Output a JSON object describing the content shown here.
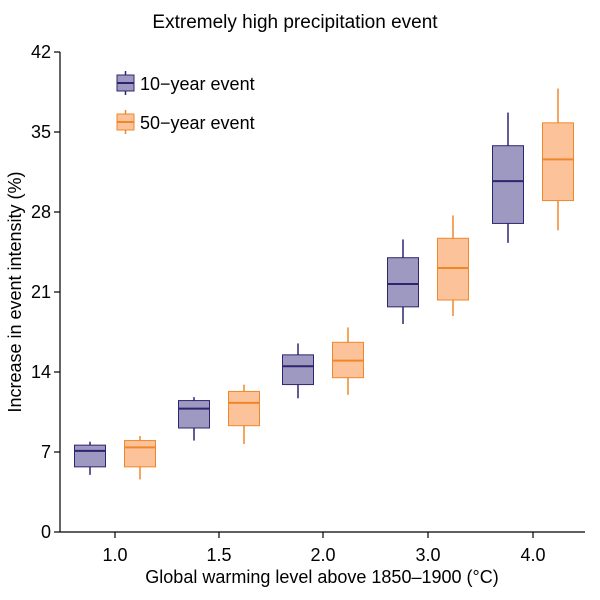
{
  "chart_data": {
    "type": "box",
    "title": "Extremely high precipitation event",
    "xlabel": "Global warming level above 1850–1900 (°C)",
    "ylabel": "Increase in event intensity (%)",
    "categories": [
      "1.0",
      "1.5",
      "2.0",
      "3.0",
      "4.0"
    ],
    "ylim": [
      0,
      42
    ],
    "yticks": [
      0,
      7,
      14,
      21,
      28,
      35,
      42
    ],
    "grid": false,
    "legend_position": "top-left",
    "series": [
      {
        "name": "10−year event",
        "fill": "#9e99c0",
        "line": "#2e2570",
        "boxes": [
          {
            "min": 5.0,
            "q1": 5.7,
            "median": 7.1,
            "q3": 7.6,
            "max": 7.9
          },
          {
            "min": 8.0,
            "q1": 9.1,
            "median": 10.8,
            "q3": 11.5,
            "max": 11.8
          },
          {
            "min": 11.7,
            "q1": 12.9,
            "median": 14.5,
            "q3": 15.5,
            "max": 16.5
          },
          {
            "min": 18.2,
            "q1": 19.7,
            "median": 21.7,
            "q3": 24.0,
            "max": 25.6
          },
          {
            "min": 25.3,
            "q1": 27.0,
            "median": 30.7,
            "q3": 33.8,
            "max": 36.7
          }
        ]
      },
      {
        "name": "50−year event",
        "fill": "#fcc29a",
        "line": "#f0872a",
        "boxes": [
          {
            "min": 4.6,
            "q1": 5.7,
            "median": 7.4,
            "q3": 8.0,
            "max": 8.4
          },
          {
            "min": 7.7,
            "q1": 9.3,
            "median": 11.3,
            "q3": 12.3,
            "max": 12.9
          },
          {
            "min": 12.0,
            "q1": 13.5,
            "median": 15.0,
            "q3": 16.6,
            "max": 17.9
          },
          {
            "min": 18.9,
            "q1": 20.3,
            "median": 23.1,
            "q3": 25.7,
            "max": 27.7
          },
          {
            "min": 26.4,
            "q1": 29.0,
            "median": 32.6,
            "q3": 35.8,
            "max": 38.8
          }
        ]
      }
    ]
  }
}
